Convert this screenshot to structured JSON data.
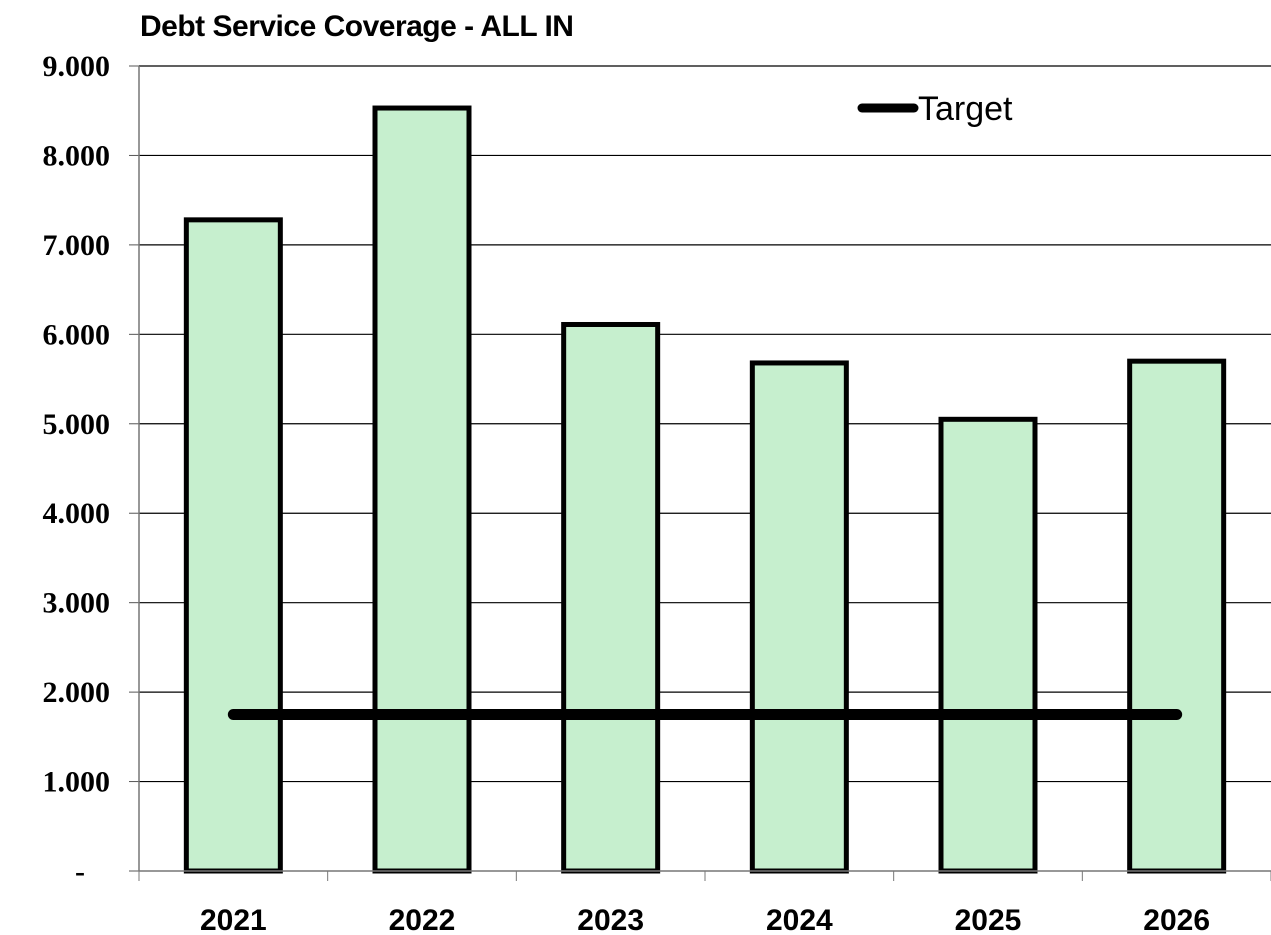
{
  "chart_data": {
    "type": "bar",
    "title": "Debt Service Coverage - ALL IN",
    "categories": [
      "2021",
      "2022",
      "2023",
      "2024",
      "2025",
      "2026"
    ],
    "series": [
      {
        "values": [
          7.28,
          8.53,
          6.11,
          5.68,
          5.05,
          5.7
        ]
      },
      {
        "name": "Target",
        "type": "line",
        "values": [
          1.75,
          1.75,
          1.75,
          1.75,
          1.75,
          1.75
        ]
      }
    ],
    "ylim": [
      0,
      9
    ],
    "yticks": [
      0,
      1,
      2,
      3,
      4,
      5,
      6,
      7,
      8,
      9
    ],
    "ytick_labels": [
      "-",
      "1.000",
      "2.000",
      "3.000",
      "4.000",
      "5.000",
      "6.000",
      "7.000",
      "8.000",
      "9.000"
    ],
    "grid": true,
    "legend": "top-right",
    "colors": {
      "bar_fill": "#c6efce",
      "bar_stroke": "#000000",
      "target_line": "#000000",
      "grid": "#000000"
    }
  }
}
